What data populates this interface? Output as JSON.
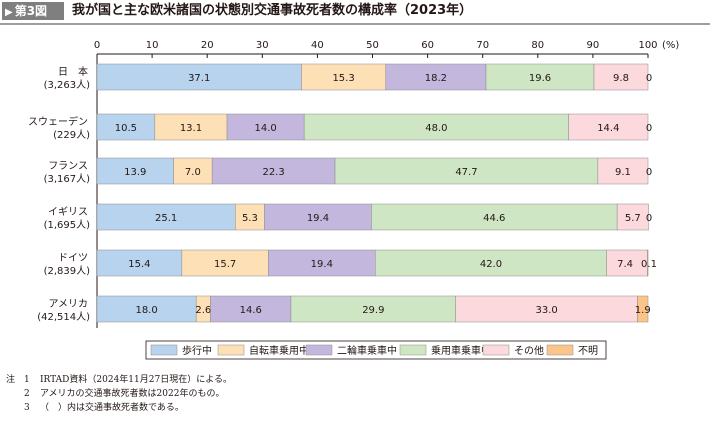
{
  "header": {
    "figure_label": "第3図",
    "title": "我が国と主な欧米諸国の状態別交通事故死者数の構成率（2023年）"
  },
  "chart_data": {
    "type": "bar",
    "orientation": "horizontal",
    "stacked": true,
    "x_unit": "(%)",
    "xlim": [
      0,
      100
    ],
    "ticks": [
      0,
      10,
      20,
      30,
      40,
      50,
      60,
      70,
      80,
      90,
      100
    ],
    "grid": false,
    "legend_position": "bottom",
    "categories": [
      {
        "name": "日　本",
        "sub": "(3,263人)"
      },
      {
        "name": "スウェーデン",
        "sub": "(229人)"
      },
      {
        "name": "フランス",
        "sub": "(3,167人)"
      },
      {
        "name": "イギリス",
        "sub": "(1,695人)"
      },
      {
        "name": "ドイツ",
        "sub": "(2,839人)"
      },
      {
        "name": "アメリカ",
        "sub": "(42,514人)"
      }
    ],
    "series": [
      {
        "name": "歩行中",
        "color": "#b8d3ee",
        "values": [
          37.1,
          10.5,
          13.9,
          25.1,
          15.4,
          18.0
        ]
      },
      {
        "name": "自転車乗用中",
        "color": "#fde0b6",
        "values": [
          15.3,
          13.1,
          7.0,
          5.3,
          15.7,
          2.6
        ]
      },
      {
        "name": "二輪車乗車中",
        "color": "#c3b7dd",
        "values": [
          18.2,
          14.0,
          22.3,
          19.4,
          19.4,
          14.6
        ]
      },
      {
        "name": "乗用車乗車中",
        "color": "#cfe6c4",
        "values": [
          19.6,
          48.0,
          47.7,
          44.6,
          42.0,
          29.9
        ]
      },
      {
        "name": "その他",
        "color": "#fbd9dc",
        "values": [
          9.8,
          14.4,
          9.1,
          5.7,
          7.4,
          33.0
        ]
      },
      {
        "name": "不明",
        "color": "#fcc489",
        "values": [
          0,
          0,
          0,
          0,
          0.1,
          1.9
        ]
      }
    ],
    "value_labels": [
      [
        "37.1",
        "15.3",
        "18.2",
        "19.6",
        "9.8",
        "0"
      ],
      [
        "10.5",
        "13.1",
        "14.0",
        "48.0",
        "14.4",
        "0"
      ],
      [
        "13.9",
        "7.0",
        "22.3",
        "47.7",
        "9.1",
        "0"
      ],
      [
        "25.1",
        "5.3",
        "19.4",
        "44.6",
        "5.7",
        "0"
      ],
      [
        "15.4",
        "15.7",
        "19.4",
        "42.0",
        "7.4",
        "0.1"
      ],
      [
        "18.0",
        "2.6",
        "14.6",
        "29.9",
        "33.0",
        "1.9"
      ]
    ]
  },
  "notes": [
    {
      "label": "注",
      "num": "1",
      "text": "IRTAD資料（2024年11月27日現在）による。"
    },
    {
      "label": "",
      "num": "2",
      "text": "アメリカの交通事故死者数は2022年のもの。"
    },
    {
      "label": "",
      "num": "3",
      "text": "（　）内は交通事故死者数である。"
    }
  ]
}
